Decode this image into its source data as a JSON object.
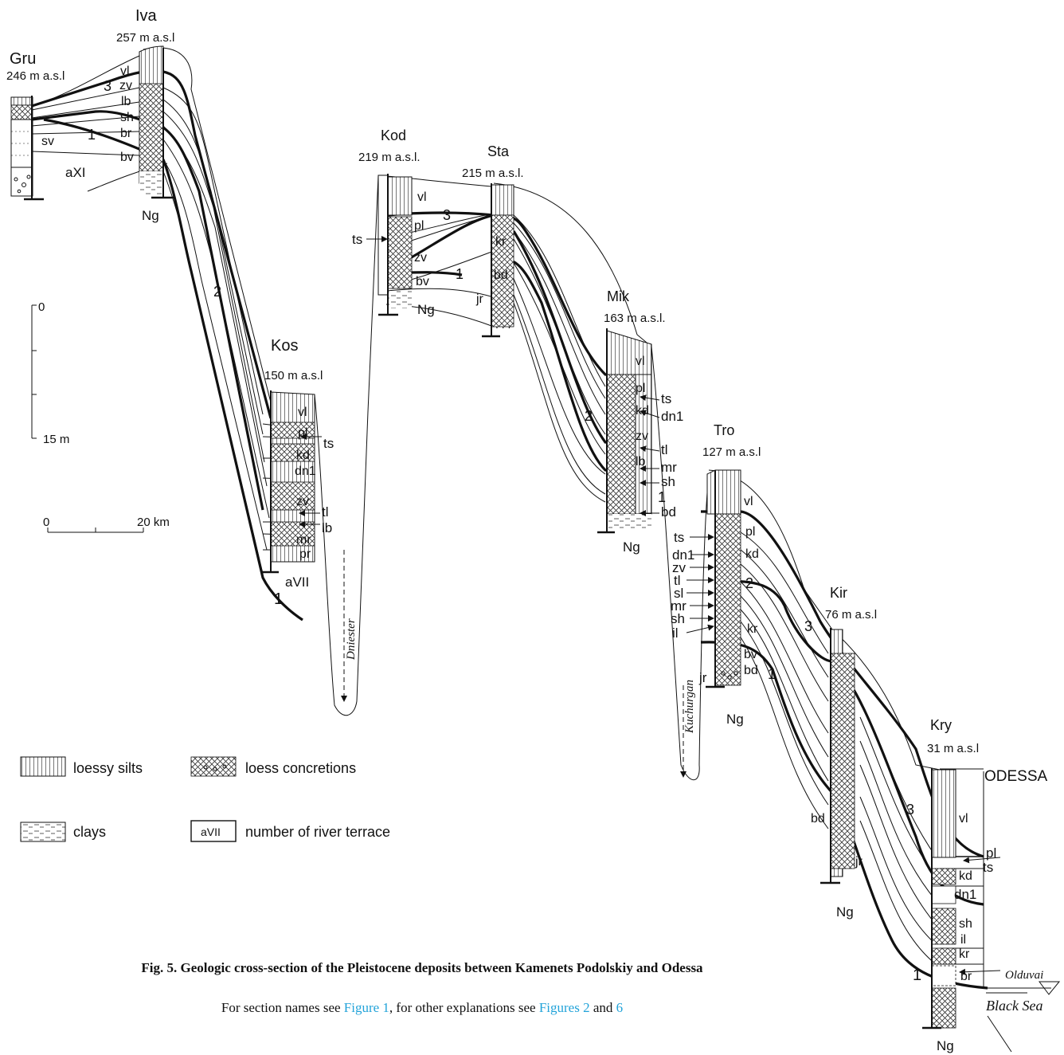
{
  "sections": [
    {
      "code": "Gru",
      "elevation": "246 m a.s.l"
    },
    {
      "code": "Iva",
      "elevation": "257 m a.s.l"
    },
    {
      "code": "Kod",
      "elevation": "219 m a.s.l."
    },
    {
      "code": "Sta",
      "elevation": "215 m a.s.l."
    },
    {
      "code": "Kos",
      "elevation": "150 m a.s.l"
    },
    {
      "code": "Mik",
      "elevation": "163 m a.s.l."
    },
    {
      "code": "Tro",
      "elevation": "127 m a.s.l"
    },
    {
      "code": "Kir",
      "elevation": "76 m a.s.l"
    },
    {
      "code": "Kry",
      "elevation": "31 m a.s.l"
    }
  ],
  "site_label": "ODESSA",
  "rivers": [
    "Dniester",
    "Kuchurgan"
  ],
  "sea_label": "Black Sea",
  "olduvai_label": "Olduvai",
  "vertical_scale": {
    "top": "0",
    "bottom": "15 m"
  },
  "horizontal_scale": {
    "start": "0",
    "end": "20 km"
  },
  "legend": [
    {
      "key": "loessy",
      "label": "loessy silts"
    },
    {
      "key": "concretions",
      "label": "loess concretions"
    },
    {
      "key": "clays",
      "label": "clays"
    },
    {
      "key": "terrace",
      "sample": "aVII",
      "label": "number of river terrace"
    }
  ],
  "unit_labels": {
    "gru": [
      "sv",
      "aXI"
    ],
    "iva": [
      "vl",
      "3",
      "zv",
      "lb",
      "sh",
      "1",
      "br",
      "bv",
      "Ng"
    ],
    "kos": [
      "vl",
      "pl",
      "ts",
      "kd",
      "dn1",
      "zv",
      "tl",
      "lb",
      "mr",
      "pr",
      "aVII",
      "2",
      "1"
    ],
    "kod": [
      "vl",
      "pl",
      "ts",
      "zv",
      "bv",
      "1",
      "Ng"
    ],
    "sta": [
      "3",
      "kr",
      "bd",
      "jr"
    ],
    "mik": [
      "vl",
      "pl",
      "ts",
      "kd",
      "dn1",
      "zv",
      "tl",
      "lb",
      "mr",
      "sh",
      "1",
      "bd",
      "2",
      "Ng"
    ],
    "tro": [
      "vl",
      "pl",
      "kd",
      "ts",
      "dn1",
      "zv",
      "tl",
      "2",
      "sl",
      "mr",
      "sh",
      "il",
      "kr",
      "bv",
      "bd",
      "jr",
      "1",
      "Ng"
    ],
    "kir": [
      "3",
      "bd",
      "jr",
      "Ng"
    ],
    "kry": [
      "vl",
      "pl",
      "ts",
      "kd",
      "dn1",
      "sh",
      "il",
      "kr",
      "br",
      "3",
      "1",
      "Ng"
    ]
  },
  "caption": {
    "title": "Fig. 5. Geologic cross-section of the Pleistocene deposits between Kamenets Podolskiy and Odessa",
    "sub_prefix": "For section names see ",
    "sub_link1": "Figure 1",
    "sub_mid": ", for other explanations see ",
    "sub_link2": "Figures 2",
    "sub_and": " and ",
    "sub_link3": "6"
  }
}
